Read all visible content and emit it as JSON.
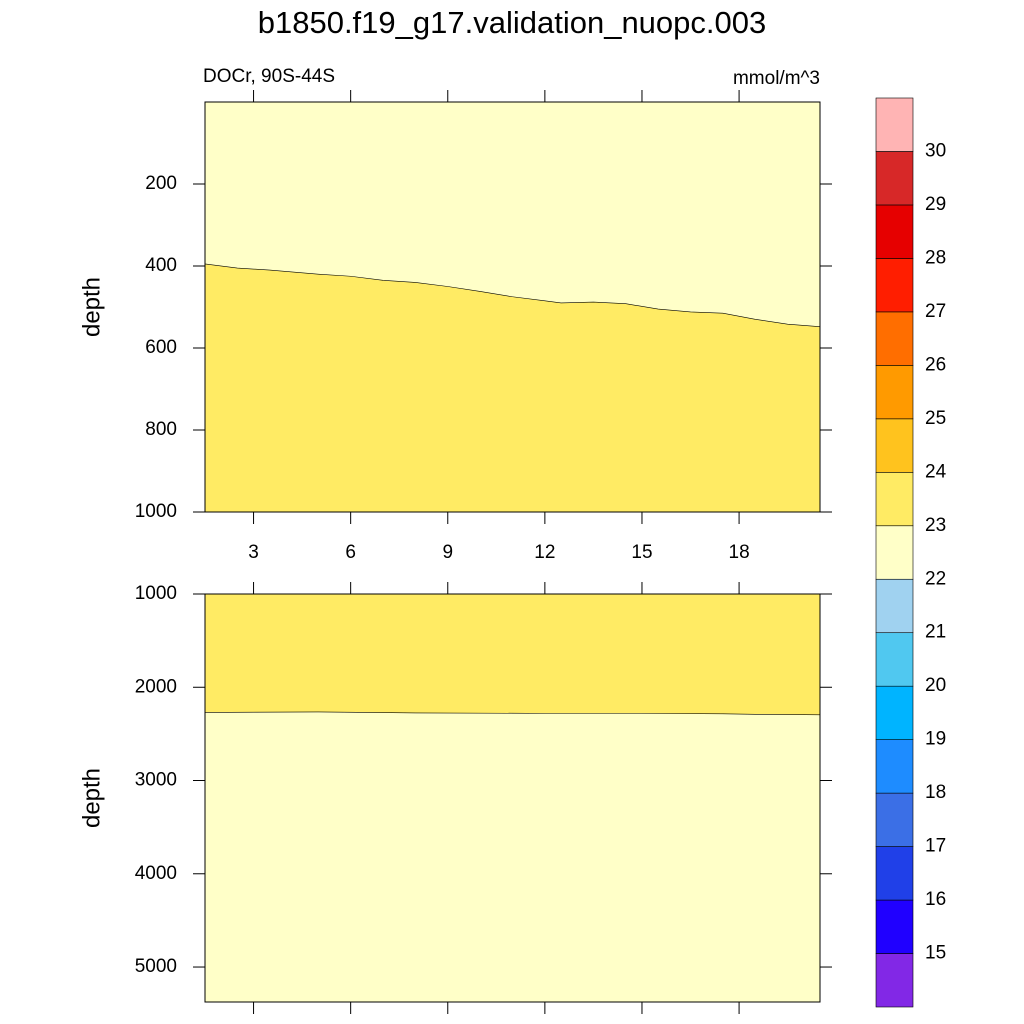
{
  "chart_data": {
    "type": "contour",
    "title": "b1850.f19_g17.validation_nuopc.003",
    "left_label": "DOCr, 90S-44S",
    "right_label": "mmol/m^3",
    "panels": [
      {
        "ylabel": "depth",
        "xlim": [
          1.5,
          20.5
        ],
        "xticks": [
          3,
          6,
          9,
          12,
          15,
          18
        ],
        "ylim": [
          0,
          1000
        ],
        "yticks": [
          200,
          400,
          600,
          800,
          1000
        ],
        "fill_above": "#ffffc8",
        "fill_below": "#ffeb64",
        "boundary": {
          "x": [
            1.5,
            2.5,
            3.5,
            5,
            6,
            7,
            8,
            9,
            10,
            11,
            12,
            12.5,
            13.5,
            14.5,
            15.5,
            16.5,
            17.5,
            18.5,
            19.5,
            20.5
          ],
          "y": [
            395,
            405,
            410,
            420,
            425,
            435,
            440,
            450,
            462,
            475,
            485,
            490,
            488,
            492,
            505,
            512,
            515,
            530,
            542,
            548
          ]
        }
      },
      {
        "ylabel": "depth",
        "xlim": [
          1.5,
          20.5
        ],
        "xticks": [
          3,
          6,
          9,
          12,
          15,
          18
        ],
        "ylim": [
          1000,
          5375
        ],
        "yticks": [
          1000,
          2000,
          3000,
          4000,
          5000
        ],
        "fill_above": "#ffeb64",
        "fill_below": "#ffffc8",
        "boundary": {
          "x": [
            1.5,
            5,
            8,
            12,
            15,
            17.5,
            18.5,
            20.5
          ],
          "y": [
            2270,
            2265,
            2275,
            2280,
            2280,
            2285,
            2290,
            2295
          ]
        }
      }
    ],
    "colorbar": {
      "levels": [
        15,
        16,
        17,
        18,
        19,
        20,
        21,
        22,
        23,
        24,
        25,
        26,
        27,
        28,
        29,
        30
      ],
      "colors": [
        "#8228e6",
        "#2000ff",
        "#2040e8",
        "#3b6fe6",
        "#1e8cff",
        "#00b4ff",
        "#50c8f0",
        "#a0d2f0",
        "#ffffc8",
        "#ffeb64",
        "#ffc31e",
        "#ff9a00",
        "#ff6e00",
        "#ff1e00",
        "#e60000",
        "#d72828",
        "#ffb4b4"
      ]
    }
  }
}
